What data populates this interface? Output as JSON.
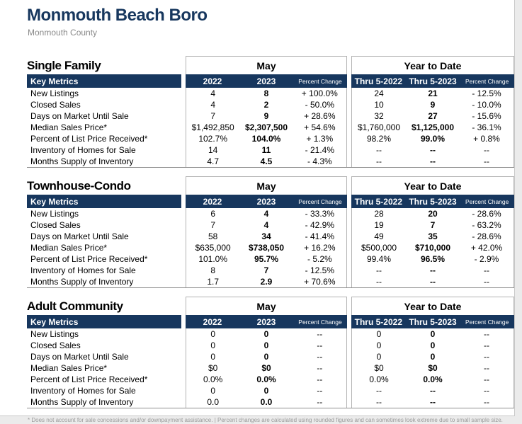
{
  "page": {
    "title": "Monmouth Beach Boro",
    "subtitle": "Monmouth County",
    "footnote": "* Does not account for sale concessions and/or downpayment assistance.  |  Percent changes are calculated using rounded figures and can sometimes look extreme due to small sample size."
  },
  "colors": {
    "navy": "#17375e",
    "box_border": "#b3b3b3",
    "bottom_rule": "#8f8f8f",
    "footnote_gray": "#999999"
  },
  "columns": {
    "metrics_header": "Key Metrics",
    "group_may": "May",
    "group_ytd": "Year to Date",
    "may_cols": [
      "2022",
      "2023",
      "Percent Change"
    ],
    "ytd_cols": [
      "Thru 5-2022",
      "Thru 5-2023",
      "Percent Change"
    ]
  },
  "sections": [
    {
      "title": "Single Family",
      "rows": [
        {
          "metric": "New Listings",
          "values": [
            "4",
            "8",
            "+ 100.0%",
            "24",
            "21",
            "- 12.5%"
          ]
        },
        {
          "metric": "Closed Sales",
          "values": [
            "4",
            "2",
            "- 50.0%",
            "10",
            "9",
            "- 10.0%"
          ]
        },
        {
          "metric": "Days on Market Until Sale",
          "values": [
            "7",
            "9",
            "+ 28.6%",
            "32",
            "27",
            "- 15.6%"
          ]
        },
        {
          "metric": "Median Sales Price*",
          "values": [
            "$1,492,850",
            "$2,307,500",
            "+ 54.6%",
            "$1,760,000",
            "$1,125,000",
            "- 36.1%"
          ]
        },
        {
          "metric": "Percent of List Price Received*",
          "values": [
            "102.7%",
            "104.0%",
            "+ 1.3%",
            "98.2%",
            "99.0%",
            "+ 0.8%"
          ]
        },
        {
          "metric": "Inventory of Homes for Sale",
          "values": [
            "14",
            "11",
            "- 21.4%",
            "--",
            "--",
            "--"
          ]
        },
        {
          "metric": "Months Supply of Inventory",
          "values": [
            "4.7",
            "4.5",
            "- 4.3%",
            "--",
            "--",
            "--"
          ]
        }
      ]
    },
    {
      "title": "Townhouse-Condo",
      "rows": [
        {
          "metric": "New Listings",
          "values": [
            "6",
            "4",
            "- 33.3%",
            "28",
            "20",
            "- 28.6%"
          ]
        },
        {
          "metric": "Closed Sales",
          "values": [
            "7",
            "4",
            "- 42.9%",
            "19",
            "7",
            "- 63.2%"
          ]
        },
        {
          "metric": "Days on Market Until Sale",
          "values": [
            "58",
            "34",
            "- 41.4%",
            "49",
            "35",
            "- 28.6%"
          ]
        },
        {
          "metric": "Median Sales Price*",
          "values": [
            "$635,000",
            "$738,050",
            "+ 16.2%",
            "$500,000",
            "$710,000",
            "+ 42.0%"
          ]
        },
        {
          "metric": "Percent of List Price Received*",
          "values": [
            "101.0%",
            "95.7%",
            "- 5.2%",
            "99.4%",
            "96.5%",
            "- 2.9%"
          ]
        },
        {
          "metric": "Inventory of Homes for Sale",
          "values": [
            "8",
            "7",
            "- 12.5%",
            "--",
            "--",
            "--"
          ]
        },
        {
          "metric": "Months Supply of Inventory",
          "values": [
            "1.7",
            "2.9",
            "+ 70.6%",
            "--",
            "--",
            "--"
          ]
        }
      ]
    },
    {
      "title": "Adult Community",
      "rows": [
        {
          "metric": "New Listings",
          "values": [
            "0",
            "0",
            "--",
            "0",
            "0",
            "--"
          ]
        },
        {
          "metric": "Closed Sales",
          "values": [
            "0",
            "0",
            "--",
            "0",
            "0",
            "--"
          ]
        },
        {
          "metric": "Days on Market Until Sale",
          "values": [
            "0",
            "0",
            "--",
            "0",
            "0",
            "--"
          ]
        },
        {
          "metric": "Median Sales Price*",
          "values": [
            "$0",
            "$0",
            "--",
            "$0",
            "$0",
            "--"
          ]
        },
        {
          "metric": "Percent of List Price Received*",
          "values": [
            "0.0%",
            "0.0%",
            "--",
            "0.0%",
            "0.0%",
            "--"
          ]
        },
        {
          "metric": "Inventory of Homes for Sale",
          "values": [
            "0",
            "0",
            "--",
            "--",
            "--",
            "--"
          ]
        },
        {
          "metric": "Months Supply of Inventory",
          "values": [
            "0.0",
            "0.0",
            "--",
            "--",
            "--",
            "--"
          ]
        }
      ]
    }
  ]
}
